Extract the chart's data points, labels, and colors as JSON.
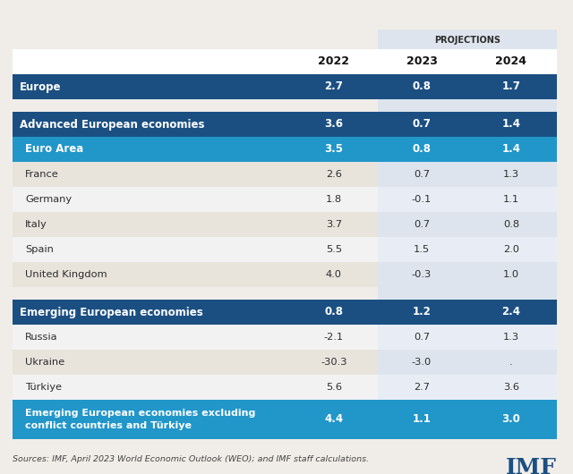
{
  "projections_label": "PROJECTIONS",
  "col_headers": [
    "2022",
    "2023",
    "2024"
  ],
  "rows": [
    {
      "label": "Europe",
      "values": [
        "2.7",
        "0.8",
        "1.7"
      ],
      "style": "dark_blue",
      "bold": true
    },
    {
      "label": "",
      "values": [
        "",
        "",
        ""
      ],
      "style": "spacer1"
    },
    {
      "label": "Advanced European economies",
      "values": [
        "3.6",
        "0.7",
        "1.4"
      ],
      "style": "dark_blue",
      "bold": true
    },
    {
      "label": "Euro Area",
      "values": [
        "3.5",
        "0.8",
        "1.4"
      ],
      "style": "med_blue",
      "bold": true
    },
    {
      "label": "France",
      "values": [
        "2.6",
        "0.7",
        "1.3"
      ],
      "style": "beige",
      "bold": false
    },
    {
      "label": "Germany",
      "values": [
        "1.8",
        "-0.1",
        "1.1"
      ],
      "style": "white",
      "bold": false
    },
    {
      "label": "Italy",
      "values": [
        "3.7",
        "0.7",
        "0.8"
      ],
      "style": "beige",
      "bold": false
    },
    {
      "label": "Spain",
      "values": [
        "5.5",
        "1.5",
        "2.0"
      ],
      "style": "white",
      "bold": false
    },
    {
      "label": "United Kingdom",
      "values": [
        "4.0",
        "-0.3",
        "1.0"
      ],
      "style": "beige",
      "bold": false
    },
    {
      "label": "",
      "values": [
        "",
        "",
        ""
      ],
      "style": "spacer2"
    },
    {
      "label": "Emerging European economies",
      "values": [
        "0.8",
        "1.2",
        "2.4"
      ],
      "style": "dark_blue",
      "bold": true
    },
    {
      "label": "Russia",
      "values": [
        "-2.1",
        "0.7",
        "1.3"
      ],
      "style": "white",
      "bold": false
    },
    {
      "label": "Ukraine",
      "values": [
        "-30.3",
        "-3.0",
        "."
      ],
      "style": "beige",
      "bold": false
    },
    {
      "label": "Türkiye",
      "values": [
        "5.6",
        "2.7",
        "3.6"
      ],
      "style": "white",
      "bold": false
    },
    {
      "label": "Emerging European economies excluding\nconflict countries and Türkiye",
      "values": [
        "4.4",
        "1.1",
        "3.0"
      ],
      "style": "med_blue",
      "bold": true
    }
  ],
  "colors": {
    "dark_blue_bg": "#1b4f82",
    "dark_blue_text": "#ffffff",
    "med_blue_bg": "#2196c9",
    "med_blue_text": "#ffffff",
    "beige_bg": "#e8e4dc",
    "white_bg": "#f2f2f2",
    "light_text": "#2c2c2c",
    "proj_shade": "#dde4ed",
    "col_header_bg": "#ffffff",
    "background": "#f0ede8",
    "spacer_bg": "#e8e4e0",
    "spacer2_bg": "#e4e0db"
  },
  "source_text": "Sources: IMF, April 2023 World Economic Outlook (WEO); and IMF staff calculations.",
  "imf_text": "IMF"
}
